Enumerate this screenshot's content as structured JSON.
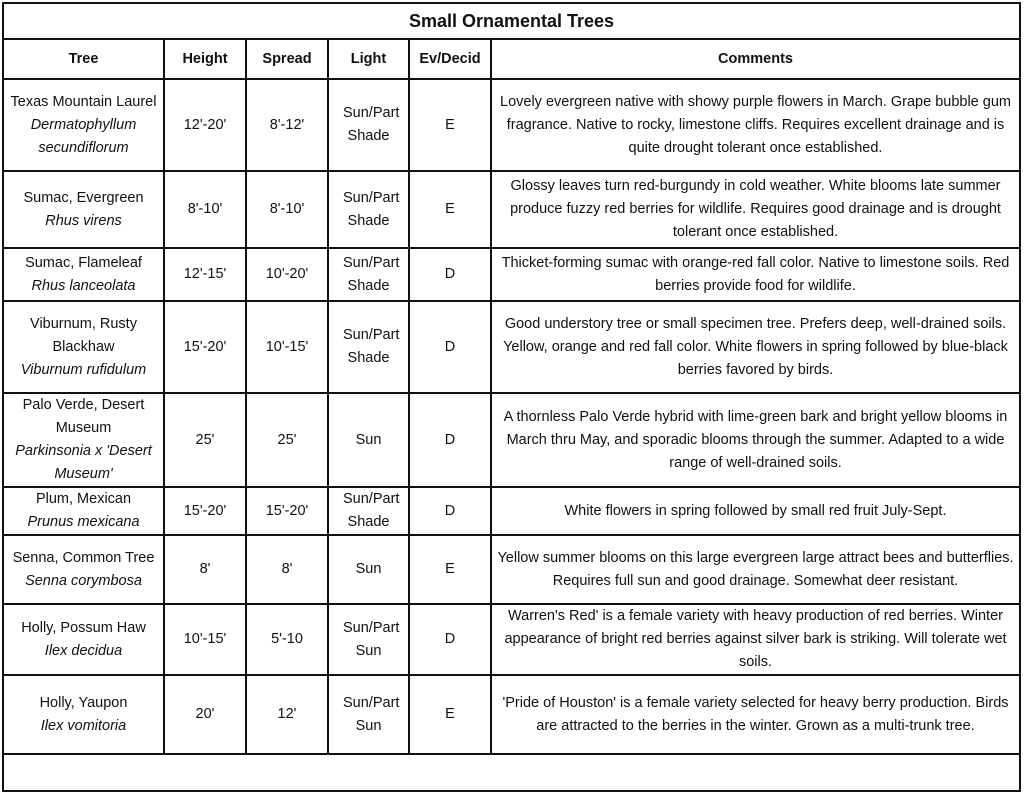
{
  "title": "Small Ornamental Trees",
  "headers": [
    "Tree",
    "Height",
    "Spread",
    "Light",
    "Ev/Decid",
    "Comments"
  ],
  "rows": [
    {
      "name": "Texas Mountain Laurel",
      "sci": "Dermatophyllum secundiflorum",
      "height": "12'-20'",
      "spread": "8'-12'",
      "light": "Sun/Part Shade",
      "ev": "E",
      "comments": "Lovely evergreen native with showy purple flowers in March. Grape bubble gum fragrance. Native to rocky, limestone cliffs. Requires excellent drainage and is quite drought tolerant once established."
    },
    {
      "name": "Sumac, Evergreen",
      "sci": "Rhus virens",
      "height": "8'-10'",
      "spread": "8'-10'",
      "light": "Sun/Part Shade",
      "ev": "E",
      "comments": "Glossy leaves turn red-burgundy in cold weather. White blooms late summer produce fuzzy red berries for wildlife. Requires good drainage and is drought tolerant once established."
    },
    {
      "name": "Sumac, Flameleaf",
      "sci": "Rhus lanceolata",
      "height": "12'-15'",
      "spread": "10'-20'",
      "light": "Sun/Part Shade",
      "ev": "D",
      "comments": "Thicket-forming sumac with orange-red fall color. Native to limestone soils. Red berries provide food for wildlife."
    },
    {
      "name": "Viburnum, Rusty Blackhaw",
      "sci": "Viburnum rufidulum",
      "height": "15'-20'",
      "spread": "10'-15'",
      "light": "Sun/Part Shade",
      "ev": "D",
      "comments": "Good understory tree or small specimen tree. Prefers deep, well-drained soils. Yellow, orange and red fall color. White flowers in spring followed by blue-black berries favored by  birds."
    },
    {
      "name": "Palo Verde, Desert Museum",
      "sci": "Parkinsonia x 'Desert Museum'",
      "height": "25'",
      "spread": "25'",
      "light": "Sun",
      "ev": "D",
      "comments": "A thornless Palo Verde hybrid with lime-green bark and bright yellow blooms in March thru May, and sporadic blooms through the summer. Adapted to a wide range of well-drained soils."
    },
    {
      "name": "Plum, Mexican",
      "sci": "Prunus mexicana",
      "height": "15'-20'",
      "spread": "15'-20'",
      "light": "Sun/Part Shade",
      "ev": "D",
      "comments": "White flowers in spring followed by small red fruit July-Sept."
    },
    {
      "name": "Senna, Common Tree",
      "sci": "Senna corymbosa",
      "height": "8'",
      "spread": "8'",
      "light": "Sun",
      "ev": "E",
      "comments": "Yellow summer blooms on this large evergreen large attract bees and butterflies. Requires full sun and good drainage. Somewhat deer resistant."
    },
    {
      "name": "Holly, Possum Haw",
      "sci": "Ilex decidua",
      "height": "10'-15'",
      "spread": "5'-10",
      "light": "Sun/Part Sun",
      "ev": "D",
      "comments": "Warren's Red' is a female variety with heavy production of red berries. Winter appearance of bright red berries against silver bark is striking. Will tolerate wet soils."
    },
    {
      "name": "Holly, Yaupon",
      "sci": "Ilex vomitoria",
      "height": "20'",
      "spread": "12'",
      "light": "Sun/Part Sun",
      "ev": "E",
      "comments": "'Pride of Houston' is a female variety selected for heavy berry production. Birds are attracted to the berries in the winter. Grown as a multi-trunk tree."
    }
  ]
}
